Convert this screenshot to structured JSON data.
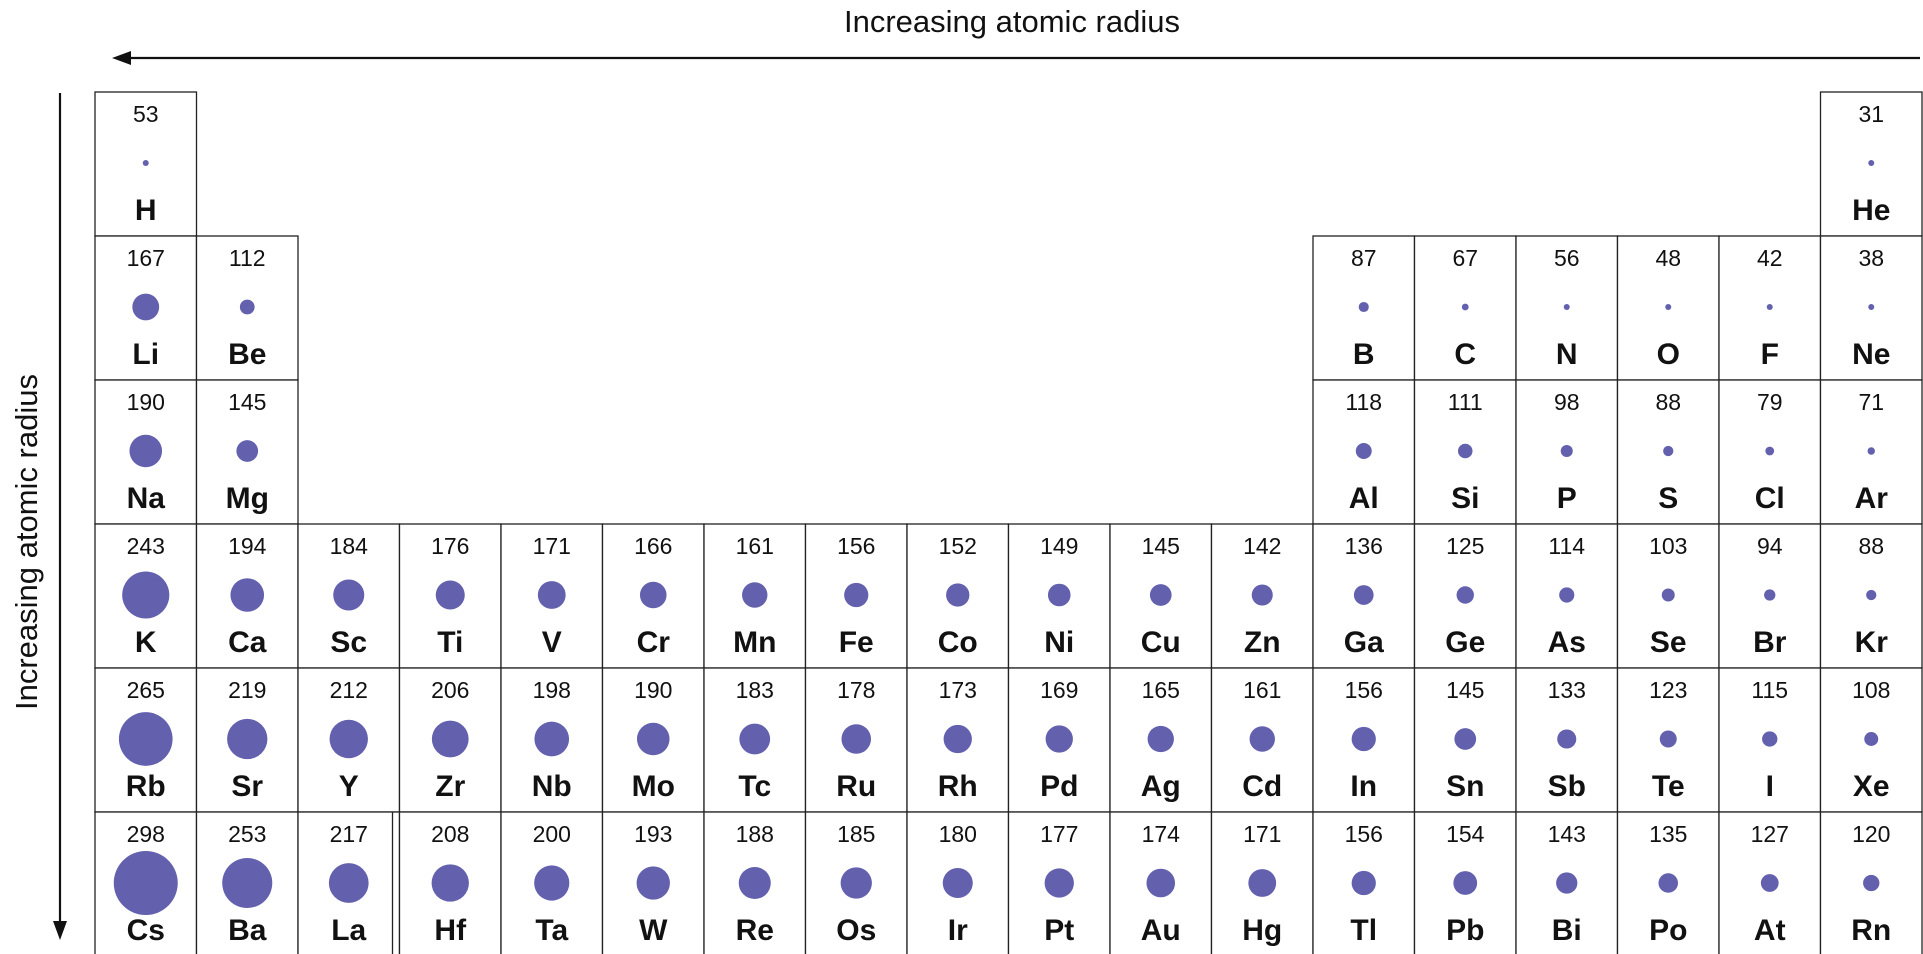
{
  "labels": {
    "top_axis": "Increasing atomic radius",
    "left_axis": "Increasing atomic radius"
  },
  "colors": {
    "atom_fill": "#6360ae",
    "line": "#111111"
  },
  "elements": [
    {
      "symbol": "H",
      "radius": 53,
      "period": 1,
      "group": 1
    },
    {
      "symbol": "He",
      "radius": 31,
      "period": 1,
      "group": 18
    },
    {
      "symbol": "Li",
      "radius": 167,
      "period": 2,
      "group": 1
    },
    {
      "symbol": "Be",
      "radius": 112,
      "period": 2,
      "group": 2
    },
    {
      "symbol": "B",
      "radius": 87,
      "period": 2,
      "group": 13
    },
    {
      "symbol": "C",
      "radius": 67,
      "period": 2,
      "group": 14
    },
    {
      "symbol": "N",
      "radius": 56,
      "period": 2,
      "group": 15
    },
    {
      "symbol": "O",
      "radius": 48,
      "period": 2,
      "group": 16
    },
    {
      "symbol": "F",
      "radius": 42,
      "period": 2,
      "group": 17
    },
    {
      "symbol": "Ne",
      "radius": 38,
      "period": 2,
      "group": 18
    },
    {
      "symbol": "Na",
      "radius": 190,
      "period": 3,
      "group": 1
    },
    {
      "symbol": "Mg",
      "radius": 145,
      "period": 3,
      "group": 2
    },
    {
      "symbol": "Al",
      "radius": 118,
      "period": 3,
      "group": 13
    },
    {
      "symbol": "Si",
      "radius": 111,
      "period": 3,
      "group": 14
    },
    {
      "symbol": "P",
      "radius": 98,
      "period": 3,
      "group": 15
    },
    {
      "symbol": "S",
      "radius": 88,
      "period": 3,
      "group": 16
    },
    {
      "symbol": "Cl",
      "radius": 79,
      "period": 3,
      "group": 17
    },
    {
      "symbol": "Ar",
      "radius": 71,
      "period": 3,
      "group": 18
    },
    {
      "symbol": "K",
      "radius": 243,
      "period": 4,
      "group": 1
    },
    {
      "symbol": "Ca",
      "radius": 194,
      "period": 4,
      "group": 2
    },
    {
      "symbol": "Sc",
      "radius": 184,
      "period": 4,
      "group": 3
    },
    {
      "symbol": "Ti",
      "radius": 176,
      "period": 4,
      "group": 4
    },
    {
      "symbol": "V",
      "radius": 171,
      "period": 4,
      "group": 5
    },
    {
      "symbol": "Cr",
      "radius": 166,
      "period": 4,
      "group": 6
    },
    {
      "symbol": "Mn",
      "radius": 161,
      "period": 4,
      "group": 7
    },
    {
      "symbol": "Fe",
      "radius": 156,
      "period": 4,
      "group": 8
    },
    {
      "symbol": "Co",
      "radius": 152,
      "period": 4,
      "group": 9
    },
    {
      "symbol": "Ni",
      "radius": 149,
      "period": 4,
      "group": 10
    },
    {
      "symbol": "Cu",
      "radius": 145,
      "period": 4,
      "group": 11
    },
    {
      "symbol": "Zn",
      "radius": 142,
      "period": 4,
      "group": 12
    },
    {
      "symbol": "Ga",
      "radius": 136,
      "period": 4,
      "group": 13
    },
    {
      "symbol": "Ge",
      "radius": 125,
      "period": 4,
      "group": 14
    },
    {
      "symbol": "As",
      "radius": 114,
      "period": 4,
      "group": 15
    },
    {
      "symbol": "Se",
      "radius": 103,
      "period": 4,
      "group": 16
    },
    {
      "symbol": "Br",
      "radius": 94,
      "period": 4,
      "group": 17
    },
    {
      "symbol": "Kr",
      "radius": 88,
      "period": 4,
      "group": 18
    },
    {
      "symbol": "Rb",
      "radius": 265,
      "period": 5,
      "group": 1
    },
    {
      "symbol": "Sr",
      "radius": 219,
      "period": 5,
      "group": 2
    },
    {
      "symbol": "Y",
      "radius": 212,
      "period": 5,
      "group": 3
    },
    {
      "symbol": "Zr",
      "radius": 206,
      "period": 5,
      "group": 4
    },
    {
      "symbol": "Nb",
      "radius": 198,
      "period": 5,
      "group": 5
    },
    {
      "symbol": "Mo",
      "radius": 190,
      "period": 5,
      "group": 6
    },
    {
      "symbol": "Tc",
      "radius": 183,
      "period": 5,
      "group": 7
    },
    {
      "symbol": "Ru",
      "radius": 178,
      "period": 5,
      "group": 8
    },
    {
      "symbol": "Rh",
      "radius": 173,
      "period": 5,
      "group": 9
    },
    {
      "symbol": "Pd",
      "radius": 169,
      "period": 5,
      "group": 10
    },
    {
      "symbol": "Ag",
      "radius": 165,
      "period": 5,
      "group": 11
    },
    {
      "symbol": "Cd",
      "radius": 161,
      "period": 5,
      "group": 12
    },
    {
      "symbol": "In",
      "radius": 156,
      "period": 5,
      "group": 13
    },
    {
      "symbol": "Sn",
      "radius": 145,
      "period": 5,
      "group": 14
    },
    {
      "symbol": "Sb",
      "radius": 133,
      "period": 5,
      "group": 15
    },
    {
      "symbol": "Te",
      "radius": 123,
      "period": 5,
      "group": 16
    },
    {
      "symbol": "I",
      "radius": 115,
      "period": 5,
      "group": 17
    },
    {
      "symbol": "Xe",
      "radius": 108,
      "period": 5,
      "group": 18
    },
    {
      "symbol": "Cs",
      "radius": 298,
      "period": 6,
      "group": 1
    },
    {
      "symbol": "Ba",
      "radius": 253,
      "period": 6,
      "group": 2
    },
    {
      "symbol": "La",
      "radius": 217,
      "period": 6,
      "group": 3
    },
    {
      "symbol": "Hf",
      "radius": 208,
      "period": 6,
      "group": 4
    },
    {
      "symbol": "Ta",
      "radius": 200,
      "period": 6,
      "group": 5
    },
    {
      "symbol": "W",
      "radius": 193,
      "period": 6,
      "group": 6
    },
    {
      "symbol": "Re",
      "radius": 188,
      "period": 6,
      "group": 7
    },
    {
      "symbol": "Os",
      "radius": 185,
      "period": 6,
      "group": 8
    },
    {
      "symbol": "Ir",
      "radius": 180,
      "period": 6,
      "group": 9
    },
    {
      "symbol": "Pt",
      "radius": 177,
      "period": 6,
      "group": 10
    },
    {
      "symbol": "Au",
      "radius": 174,
      "period": 6,
      "group": 11
    },
    {
      "symbol": "Hg",
      "radius": 171,
      "period": 6,
      "group": 12
    },
    {
      "symbol": "Tl",
      "radius": 156,
      "period": 6,
      "group": 13
    },
    {
      "symbol": "Pb",
      "radius": 154,
      "period": 6,
      "group": 14
    },
    {
      "symbol": "Bi",
      "radius": 143,
      "period": 6,
      "group": 15
    },
    {
      "symbol": "Po",
      "radius": 135,
      "period": 6,
      "group": 16
    },
    {
      "symbol": "At",
      "radius": 127,
      "period": 6,
      "group": 17
    },
    {
      "symbol": "Rn",
      "radius": 120,
      "period": 6,
      "group": 18
    }
  ]
}
